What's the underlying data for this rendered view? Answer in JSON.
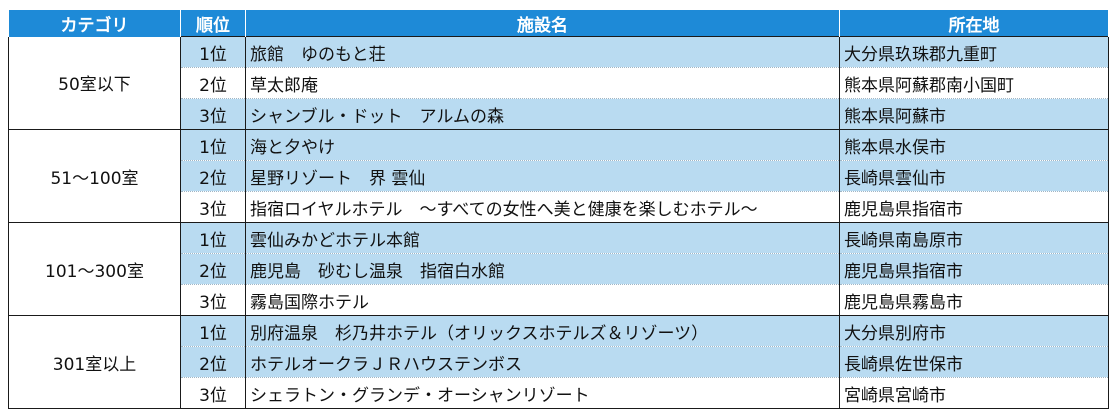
{
  "headers": {
    "category": "カテゴリ",
    "rank": "順位",
    "facility": "施設名",
    "location": "所在地"
  },
  "groups": [
    {
      "category": "50室以下",
      "rows": [
        {
          "rank": "1位",
          "name": "旅館　ゆのもと荘",
          "location": "大分県玖珠郡九重町"
        },
        {
          "rank": "2位",
          "name": "草太郎庵",
          "location": "熊本県阿蘇郡南小国町"
        },
        {
          "rank": "3位",
          "name": "シャンブル・ドット　アルムの森",
          "location": "熊本県阿蘇市"
        }
      ]
    },
    {
      "category": "51～100室",
      "rows": [
        {
          "rank": "1位",
          "name": "海と夕やけ",
          "location": "熊本県水俣市"
        },
        {
          "rank": "2位",
          "name": "星野リゾート　界 雲仙",
          "location": "長崎県雲仙市"
        },
        {
          "rank": "3位",
          "name": "指宿ロイヤルホテル　～すべての女性へ美と健康を楽しむホテル～",
          "location": "鹿児島県指宿市"
        }
      ]
    },
    {
      "category": "101～300室",
      "rows": [
        {
          "rank": "1位",
          "name": "雲仙みかどホテル本館",
          "location": "長崎県南島原市"
        },
        {
          "rank": "2位",
          "name": "鹿児島　砂むし温泉　指宿白水館",
          "location": "鹿児島県指宿市"
        },
        {
          "rank": "3位",
          "name": "霧島国際ホテル",
          "location": "鹿児島県霧島市"
        }
      ]
    },
    {
      "category": "301室以上",
      "rows": [
        {
          "rank": "1位",
          "name": "別府温泉　杉乃井ホテル（オリックスホテルズ＆リゾーツ）",
          "location": "大分県別府市"
        },
        {
          "rank": "2位",
          "name": "ホテルオークラＪＲハウステンボス",
          "location": "長崎県佐世保市"
        },
        {
          "rank": "3位",
          "name": "シェラトン・グランデ・オーシャンリゾート",
          "location": "宮崎県宮崎市"
        }
      ]
    }
  ],
  "colors": {
    "header_bg": "#1e8ad7",
    "row_highlight": "#b9dbf1"
  }
}
